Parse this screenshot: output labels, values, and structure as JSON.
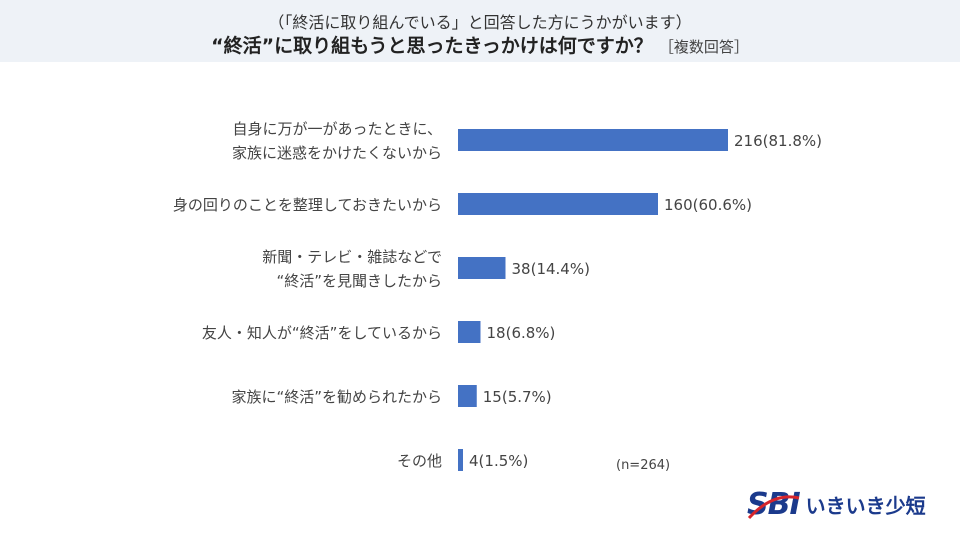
{
  "header": {
    "subtitle": "（「終活に取り組んでいる」と回答した方にうかがいます）",
    "title": "“終活”に取り組もうと思ったきっかけは何ですか？",
    "title_note": "［複数回答］"
  },
  "chart_data": {
    "type": "bar",
    "orientation": "horizontal",
    "title": "“終活”に取り組もうと思ったきっかけは何ですか？",
    "categories": [
      [
        "自身に万が一があったときに、",
        "家族に迷惑をかけたくないから"
      ],
      [
        "身の回りのことを整理しておきたいから"
      ],
      [
        "新聞・テレビ・雑誌などで",
        "“終活”を見聞きしたから"
      ],
      [
        "友人・知人が“終活”をしているから"
      ],
      [
        "家族に“終活”を勧められたから"
      ],
      [
        "その他"
      ]
    ],
    "values": [
      216,
      160,
      38,
      18,
      15,
      4
    ],
    "percents": [
      81.8,
      60.6,
      14.4,
      6.8,
      5.7,
      1.5
    ],
    "data_labels": [
      "216(81.8%)",
      "160(60.6%)",
      "38(14.4%)",
      "18(6.8%)",
      "15(5.7%)",
      "4(1.5%)"
    ],
    "xlim": [
      0,
      264
    ],
    "grid": false,
    "bar_color": "#4472c4",
    "note": "(n=264)"
  },
  "logo": {
    "mark": "SBI",
    "text": "いきいき少短",
    "color": "#1b3a8c"
  }
}
